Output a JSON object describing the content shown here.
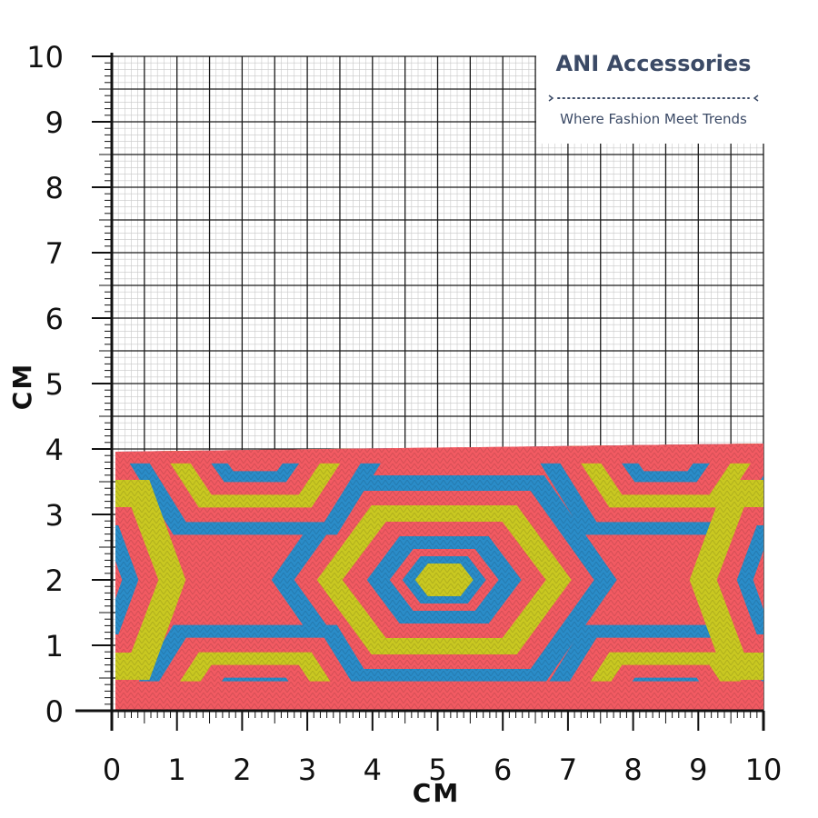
{
  "brand": {
    "name": "ANI Accessories",
    "tagline": "Where Fashion Meet Trends"
  },
  "ruler": {
    "unit_x_label": "CM",
    "unit_y_label": "CM",
    "x_ticks": [
      "0",
      "1",
      "2",
      "3",
      "4",
      "5",
      "6",
      "7",
      "8",
      "9",
      "10"
    ],
    "y_ticks": [
      "0",
      "1",
      "2",
      "3",
      "4",
      "5",
      "6",
      "7",
      "8",
      "9",
      "10"
    ]
  },
  "product": {
    "width_cm": 10,
    "height_cm": 4,
    "pattern": "woven hexagon jacquard band"
  },
  "colors": {
    "base": "#f25a62",
    "blue": "#2a8cc8",
    "yellow": "#c9c821",
    "grid": "#1a1a1a",
    "brand_text": "#3b4a66"
  }
}
